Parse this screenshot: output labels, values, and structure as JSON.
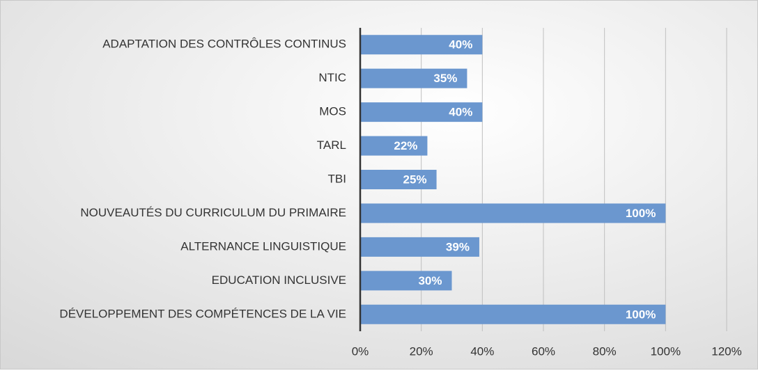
{
  "chart_data": {
    "type": "barh",
    "categories": [
      "ADAPTATION DES CONTRÔLES CONTINUS",
      "NTIC",
      "MOS",
      "TARL",
      "TBI",
      "NOUVEAUTÉS DU CURRICULUM DU PRIMAIRE",
      "ALTERNANCE LINGUISTIQUE",
      "EDUCATION INCLUSIVE",
      "DÉVELOPPEMENT DES COMPÉTENCES DE LA VIE"
    ],
    "values": [
      40,
      35,
      40,
      22,
      25,
      100,
      39,
      30,
      100
    ],
    "value_labels": [
      "40%",
      "35%",
      "40%",
      "22%",
      "25%",
      "100%",
      "39%",
      "30%",
      "100%"
    ],
    "color": "#6b97cf",
    "xlim": [
      0,
      120
    ],
    "xticks": [
      {
        "value": 0,
        "label": "0%"
      },
      {
        "value": 20,
        "label": "20%"
      },
      {
        "value": 40,
        "label": "40%"
      },
      {
        "value": 60,
        "label": "60%"
      },
      {
        "value": 80,
        "label": "80%"
      },
      {
        "value": 100,
        "label": "100%"
      },
      {
        "value": 120,
        "label": "120%"
      }
    ],
    "grid": true
  }
}
